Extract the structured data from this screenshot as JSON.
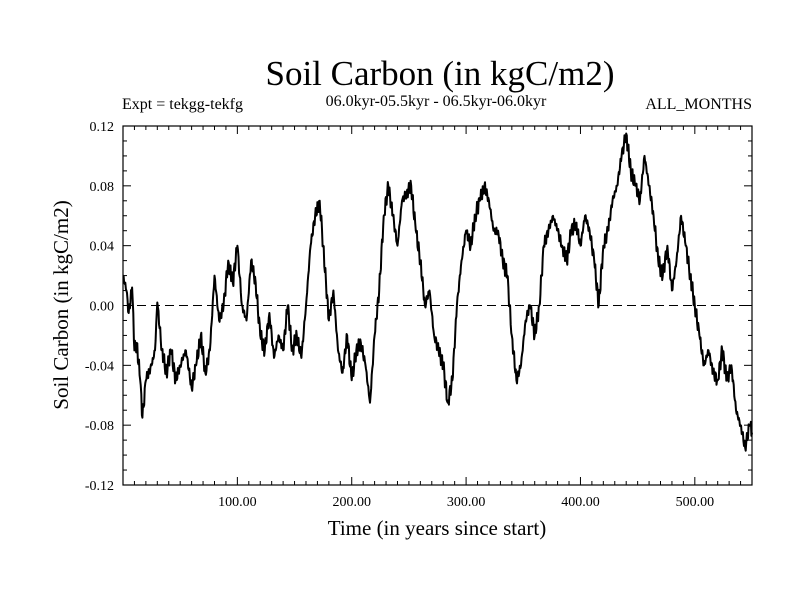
{
  "chart_data": {
    "type": "line",
    "title": "Soil Carbon (in kgC/m2)",
    "subtitle": "06.0kyr-05.5kyr - 06.5kyr-06.0kyr",
    "experiment": "Expt = tekgg-tekfg",
    "period": "ALL_MONTHS",
    "xlabel": "Time (in years since start)",
    "ylabel": "Soil Carbon (in kgC/m2)",
    "xlim": [
      0,
      550
    ],
    "ylim": [
      -0.12,
      0.12
    ],
    "x_ticks": [
      100,
      200,
      300,
      400,
      500
    ],
    "x_tick_labels": [
      "100.00",
      "200.00",
      "300.00",
      "400.00",
      "500.00"
    ],
    "y_ticks": [
      -0.12,
      -0.08,
      -0.04,
      0.0,
      0.04,
      0.08,
      0.12
    ],
    "y_tick_labels": [
      "-0.12",
      "-0.08",
      "-0.04",
      "0.00",
      "0.04",
      "0.08",
      "0.12"
    ],
    "zero_line": true,
    "anchors": [
      [
        0,
        0.02
      ],
      [
        3,
        0.01
      ],
      [
        5,
        -0.005
      ],
      [
        8,
        0.012
      ],
      [
        10,
        -0.03
      ],
      [
        12,
        -0.025
      ],
      [
        15,
        -0.05
      ],
      [
        17,
        -0.075
      ],
      [
        20,
        -0.05
      ],
      [
        25,
        -0.04
      ],
      [
        28,
        -0.03
      ],
      [
        30,
        0.002
      ],
      [
        34,
        -0.03
      ],
      [
        38,
        -0.045
      ],
      [
        42,
        -0.03
      ],
      [
        46,
        -0.05
      ],
      [
        50,
        -0.04
      ],
      [
        55,
        -0.03
      ],
      [
        60,
        -0.055
      ],
      [
        64,
        -0.04
      ],
      [
        68,
        -0.02
      ],
      [
        72,
        -0.045
      ],
      [
        76,
        -0.03
      ],
      [
        80,
        0.02
      ],
      [
        84,
        -0.01
      ],
      [
        88,
        0.0
      ],
      [
        92,
        0.03
      ],
      [
        96,
        0.015
      ],
      [
        100,
        0.04
      ],
      [
        104,
        0.0
      ],
      [
        108,
        -0.01
      ],
      [
        112,
        0.03
      ],
      [
        116,
        0.015
      ],
      [
        120,
        -0.02
      ],
      [
        124,
        -0.03
      ],
      [
        128,
        -0.005
      ],
      [
        132,
        -0.035
      ],
      [
        136,
        -0.02
      ],
      [
        140,
        -0.03
      ],
      [
        144,
        0.0
      ],
      [
        148,
        -0.03
      ],
      [
        152,
        -0.02
      ],
      [
        156,
        -0.035
      ],
      [
        160,
        0.0
      ],
      [
        164,
        0.04
      ],
      [
        168,
        0.06
      ],
      [
        172,
        0.07
      ],
      [
        175,
        0.04
      ],
      [
        180,
        -0.01
      ],
      [
        184,
        0.01
      ],
      [
        188,
        -0.03
      ],
      [
        192,
        -0.045
      ],
      [
        196,
        -0.02
      ],
      [
        200,
        -0.05
      ],
      [
        204,
        -0.03
      ],
      [
        208,
        -0.025
      ],
      [
        212,
        -0.04
      ],
      [
        216,
        -0.065
      ],
      [
        220,
        -0.02
      ],
      [
        224,
        0.01
      ],
      [
        228,
        0.06
      ],
      [
        232,
        0.08
      ],
      [
        236,
        0.06
      ],
      [
        240,
        0.04
      ],
      [
        244,
        0.07
      ],
      [
        248,
        0.075
      ],
      [
        252,
        0.08
      ],
      [
        256,
        0.05
      ],
      [
        260,
        0.03
      ],
      [
        264,
        0.0
      ],
      [
        268,
        0.01
      ],
      [
        272,
        -0.02
      ],
      [
        276,
        -0.03
      ],
      [
        280,
        -0.04
      ],
      [
        284,
        -0.065
      ],
      [
        288,
        -0.05
      ],
      [
        292,
        0.0
      ],
      [
        296,
        0.03
      ],
      [
        300,
        0.05
      ],
      [
        304,
        0.04
      ],
      [
        308,
        0.06
      ],
      [
        312,
        0.07
      ],
      [
        316,
        0.08
      ],
      [
        320,
        0.07
      ],
      [
        324,
        0.05
      ],
      [
        328,
        0.05
      ],
      [
        332,
        0.03
      ],
      [
        336,
        0.02
      ],
      [
        340,
        -0.02
      ],
      [
        344,
        -0.05
      ],
      [
        348,
        -0.04
      ],
      [
        352,
        -0.01
      ],
      [
        356,
        0.0
      ],
      [
        360,
        -0.02
      ],
      [
        364,
        0.0
      ],
      [
        368,
        0.04
      ],
      [
        372,
        0.05
      ],
      [
        376,
        0.06
      ],
      [
        380,
        0.05
      ],
      [
        384,
        0.04
      ],
      [
        388,
        0.03
      ],
      [
        392,
        0.05
      ],
      [
        396,
        0.055
      ],
      [
        400,
        0.04
      ],
      [
        404,
        0.06
      ],
      [
        408,
        0.05
      ],
      [
        412,
        0.03
      ],
      [
        416,
        0.0
      ],
      [
        420,
        0.04
      ],
      [
        424,
        0.05
      ],
      [
        428,
        0.07
      ],
      [
        432,
        0.08
      ],
      [
        436,
        0.1
      ],
      [
        440,
        0.115
      ],
      [
        444,
        0.09
      ],
      [
        448,
        0.08
      ],
      [
        452,
        0.07
      ],
      [
        456,
        0.1
      ],
      [
        460,
        0.08
      ],
      [
        464,
        0.06
      ],
      [
        468,
        0.03
      ],
      [
        472,
        0.02
      ],
      [
        476,
        0.04
      ],
      [
        480,
        0.01
      ],
      [
        484,
        0.03
      ],
      [
        488,
        0.06
      ],
      [
        492,
        0.04
      ],
      [
        496,
        0.02
      ],
      [
        500,
        0.0
      ],
      [
        504,
        -0.02
      ],
      [
        508,
        -0.04
      ],
      [
        512,
        -0.03
      ],
      [
        516,
        -0.045
      ],
      [
        520,
        -0.05
      ],
      [
        524,
        -0.03
      ],
      [
        528,
        -0.05
      ],
      [
        532,
        -0.04
      ],
      [
        536,
        -0.07
      ],
      [
        540,
        -0.08
      ],
      [
        544,
        -0.095
      ],
      [
        548,
        -0.08
      ],
      [
        550,
        -0.085
      ]
    ]
  }
}
